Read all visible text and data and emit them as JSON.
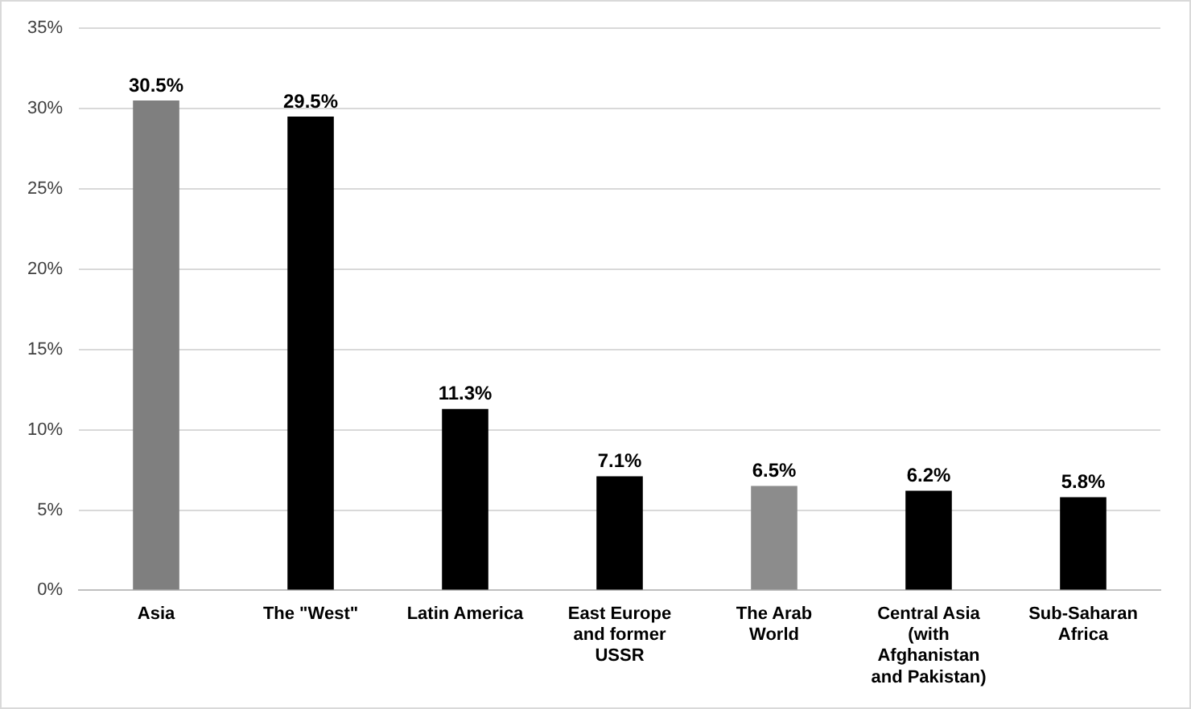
{
  "chart_data": {
    "type": "bar",
    "categories": [
      "Asia",
      "The \"West\"",
      "Latin America",
      "East Europe and former USSR",
      "The Arab World",
      "Central Asia (with Afghanistan and Pakistan)",
      "Sub-Saharan Africa"
    ],
    "values": [
      30.5,
      29.5,
      11.3,
      7.1,
      6.5,
      6.2,
      5.8
    ],
    "value_labels": [
      "30.5%",
      "29.5%",
      "11.3%",
      "7.1%",
      "6.5%",
      "6.2%",
      "5.8%"
    ],
    "colors": [
      "#7f7f7f",
      "#000000",
      "#000000",
      "#000000",
      "#8c8c8c",
      "#000000",
      "#000000"
    ],
    "ylim": [
      0,
      35
    ],
    "yticks": [
      {
        "value": 0,
        "label": "0%"
      },
      {
        "value": 5,
        "label": "5%"
      },
      {
        "value": 10,
        "label": "10%"
      },
      {
        "value": 15,
        "label": "15%"
      },
      {
        "value": 20,
        "label": "20%"
      },
      {
        "value": 25,
        "label": "25%"
      },
      {
        "value": 30,
        "label": "30%"
      },
      {
        "value": 35,
        "label": "35%"
      }
    ],
    "grid": "y",
    "legend": false
  }
}
